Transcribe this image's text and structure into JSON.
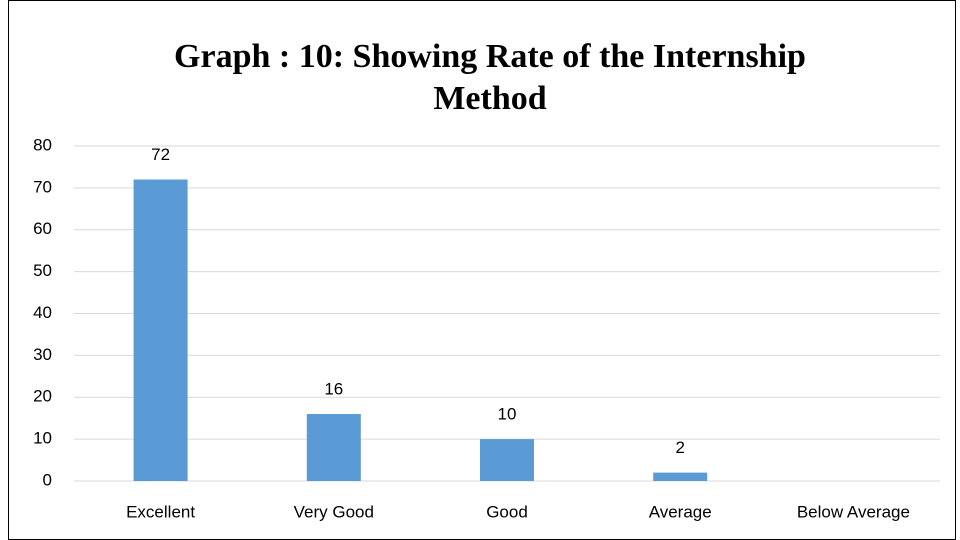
{
  "chart_data": {
    "type": "bar",
    "title": "Graph : 10: Showing Rate of the Internship Method",
    "categories": [
      "Excellent",
      "Very Good",
      "Good",
      "Average",
      "Below Average"
    ],
    "values": [
      72,
      16,
      10,
      2,
      null
    ],
    "color": "#5b9bd5",
    "ylim": [
      0,
      80
    ],
    "yticks": [
      0,
      10,
      20,
      30,
      40,
      50,
      60,
      70,
      80
    ],
    "grid": true
  }
}
